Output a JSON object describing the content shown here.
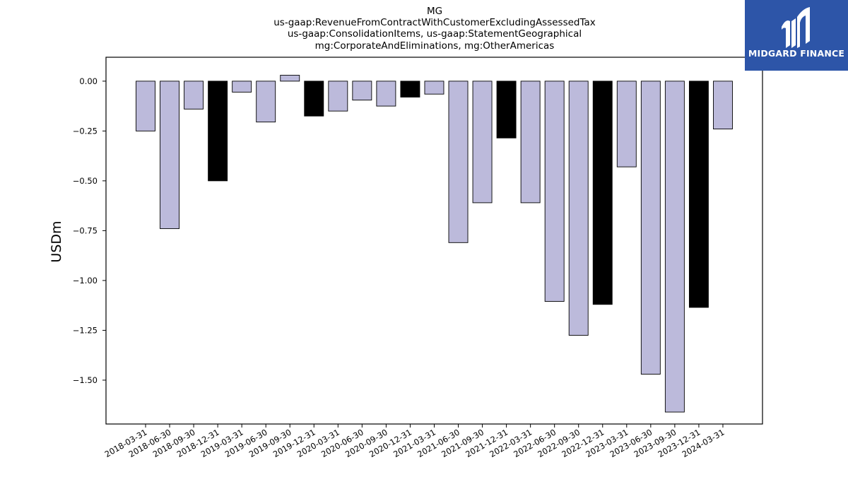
{
  "brand": {
    "name": "MIDGARD FINANCE",
    "bg_color": "#2d55a8"
  },
  "colors": {
    "bar_fill": "#bcbadb",
    "highlight_fill": "#000000",
    "bar_edge": "#000000"
  },
  "chart_data": {
    "type": "bar",
    "title_lines": [
      "MG",
      "us-gaap:RevenueFromContractWithCustomerExcludingAssessedTax",
      "us-gaap:ConsolidationItems, us-gaap:StatementGeographical",
      "mg:CorporateAndEliminations, mg:OtherAmericas"
    ],
    "xlabel": "",
    "ylabel": "USDm",
    "ylim": [
      -1.72,
      0.12
    ],
    "yticks": [
      0.0,
      -0.25,
      -0.5,
      -0.75,
      -1.0,
      -1.25,
      -1.5
    ],
    "ytick_labels": [
      "0.00",
      "−0.25",
      "−0.50",
      "−0.75",
      "−1.00",
      "−1.25",
      "−1.50"
    ],
    "grid": false,
    "categories": [
      "2018-03-31",
      "2018-06-30",
      "2018-09-30",
      "2018-12-31",
      "2019-03-31",
      "2019-06-30",
      "2019-09-30",
      "2019-12-31",
      "2020-03-31",
      "2020-06-30",
      "2020-09-30",
      "2020-12-31",
      "2021-03-31",
      "2021-06-30",
      "2021-09-30",
      "2021-12-31",
      "2022-03-31",
      "2022-06-30",
      "2022-09-30",
      "2022-12-31",
      "2023-03-31",
      "2023-06-30",
      "2023-09-30",
      "2023-12-31",
      "2024-03-31"
    ],
    "values": [
      -0.25,
      -0.74,
      -0.14,
      -0.5,
      -0.055,
      -0.205,
      0.03,
      -0.175,
      -0.15,
      -0.095,
      -0.125,
      -0.08,
      -0.065,
      -0.81,
      -0.61,
      -0.285,
      -0.61,
      -1.105,
      -1.275,
      -1.12,
      -0.43,
      -1.47,
      -1.66,
      -1.135,
      -0.24
    ],
    "highlighted": [
      false,
      false,
      false,
      true,
      false,
      false,
      false,
      true,
      false,
      false,
      false,
      true,
      false,
      false,
      false,
      true,
      false,
      false,
      false,
      true,
      false,
      false,
      false,
      true,
      false
    ]
  }
}
